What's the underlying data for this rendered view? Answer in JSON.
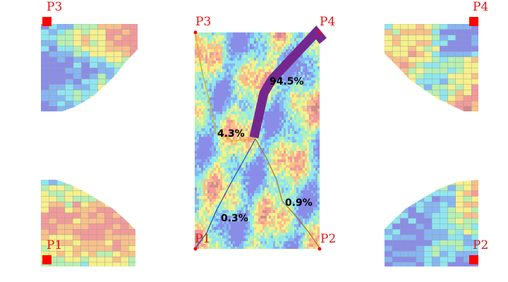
{
  "corner_labels": {
    "p1": "P1",
    "p2": "P2",
    "p3": "P3",
    "p4": "P4"
  },
  "flows": [
    {
      "id": "flow-p1",
      "to": "P1",
      "percent_label": "0.3%",
      "percent": 0.3,
      "color": "#1a3fb0"
    },
    {
      "id": "flow-p2",
      "to": "P2",
      "percent_label": "0.9%",
      "percent": 0.9,
      "color": "#b36a00"
    },
    {
      "id": "flow-p3",
      "to": "P3",
      "percent_label": "4.3%",
      "percent": 4.3,
      "color": "#d8b800"
    },
    {
      "id": "flow-p4",
      "to": "P4",
      "percent_label": "94.5%",
      "percent": 94.5,
      "color": "#74288f"
    }
  ],
  "colors": {
    "corner_marker": "#ff0000",
    "corner_text": "#e01515",
    "dominant_path": "#74288f",
    "heatmap_palette": [
      "#8a8de8",
      "#86b6f2",
      "#8fe6f0",
      "#b6f0b2",
      "#f6f08c",
      "#f8c08a",
      "#f29a9a",
      "#cf8c8c"
    ]
  }
}
